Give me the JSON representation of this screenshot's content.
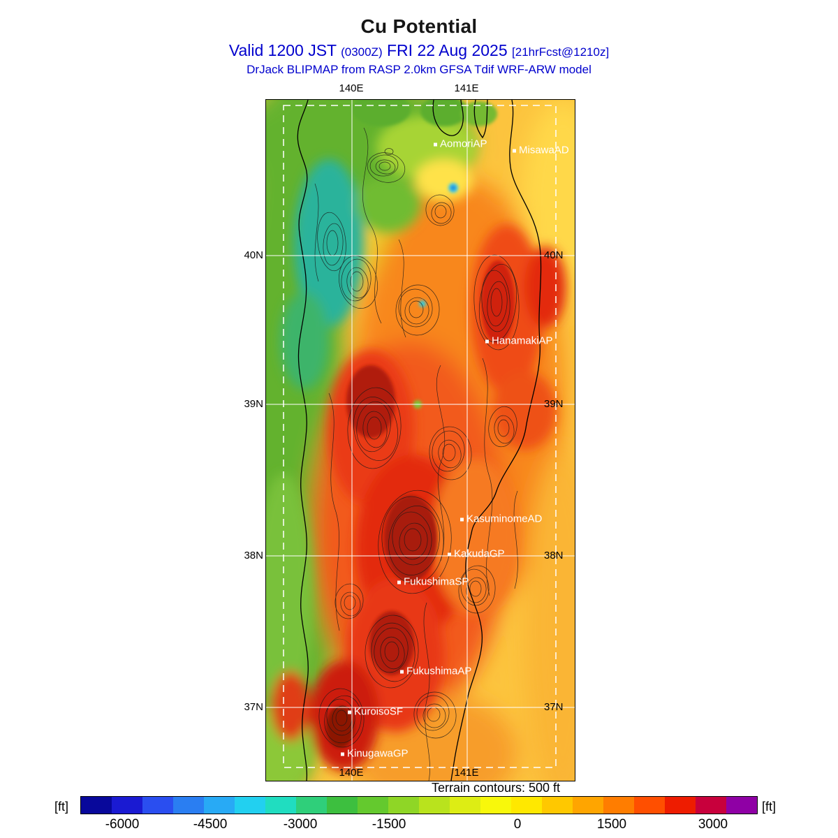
{
  "header": {
    "title": "Cu Potential",
    "valid_prefix": "Valid 1200 JST ",
    "valid_small1": "(0300Z)",
    "valid_mid": " FRI 22 Aug 2025 ",
    "valid_small2": "[21hrFcst@1210z]",
    "model_line": "DrJack BLIPMAP from RASP 2.0km GFSA Tdif WRF-ARW model"
  },
  "map": {
    "lon_top": [
      "140E",
      "141E"
    ],
    "lon_bottom": [
      "140E",
      "141E"
    ],
    "lat_left": [
      "40N",
      "39N",
      "38N",
      "37N"
    ],
    "lat_right": [
      "40N",
      "39N",
      "38N",
      "37N"
    ],
    "stations": [
      {
        "name": "AomoriAP"
      },
      {
        "name": "MisawaAD"
      },
      {
        "name": "HanamakiAP"
      },
      {
        "name": "KasuminomeAD"
      },
      {
        "name": "KakudaGP"
      },
      {
        "name": "FukushimaSP"
      },
      {
        "name": "FukushimaAP"
      },
      {
        "name": "KuroisoSF"
      },
      {
        "name": "KinugawaGP"
      }
    ]
  },
  "footer": {
    "terrain_note": "Terrain contours: 500 ft",
    "colorbar": {
      "unit_left": "[ft]",
      "unit_right": "[ft]",
      "ticks": [
        "-6000",
        "-4500",
        "-3000",
        "-1500",
        "0",
        "1500",
        "3000"
      ],
      "colors": [
        "#08089b",
        "#1a1ad2",
        "#2a4ef0",
        "#2a7ef2",
        "#28aaf5",
        "#22d0f0",
        "#20ddc0",
        "#2fcf7a",
        "#3dbf3f",
        "#64c92e",
        "#8fd626",
        "#b9e31d",
        "#dded14",
        "#f8f80b",
        "#ffe800",
        "#ffc800",
        "#ffa500",
        "#ff7d00",
        "#ff4f00",
        "#ee1c00",
        "#c8003c",
        "#8f00a5"
      ]
    }
  },
  "colors": {
    "header_text": "#0000cd",
    "ocean_east": "#fcc43e",
    "west_green": "#63b22f",
    "teal_patch": "#2cb39b",
    "hot_red": "#e32a10",
    "cyan_spot": "#38c9f2"
  }
}
